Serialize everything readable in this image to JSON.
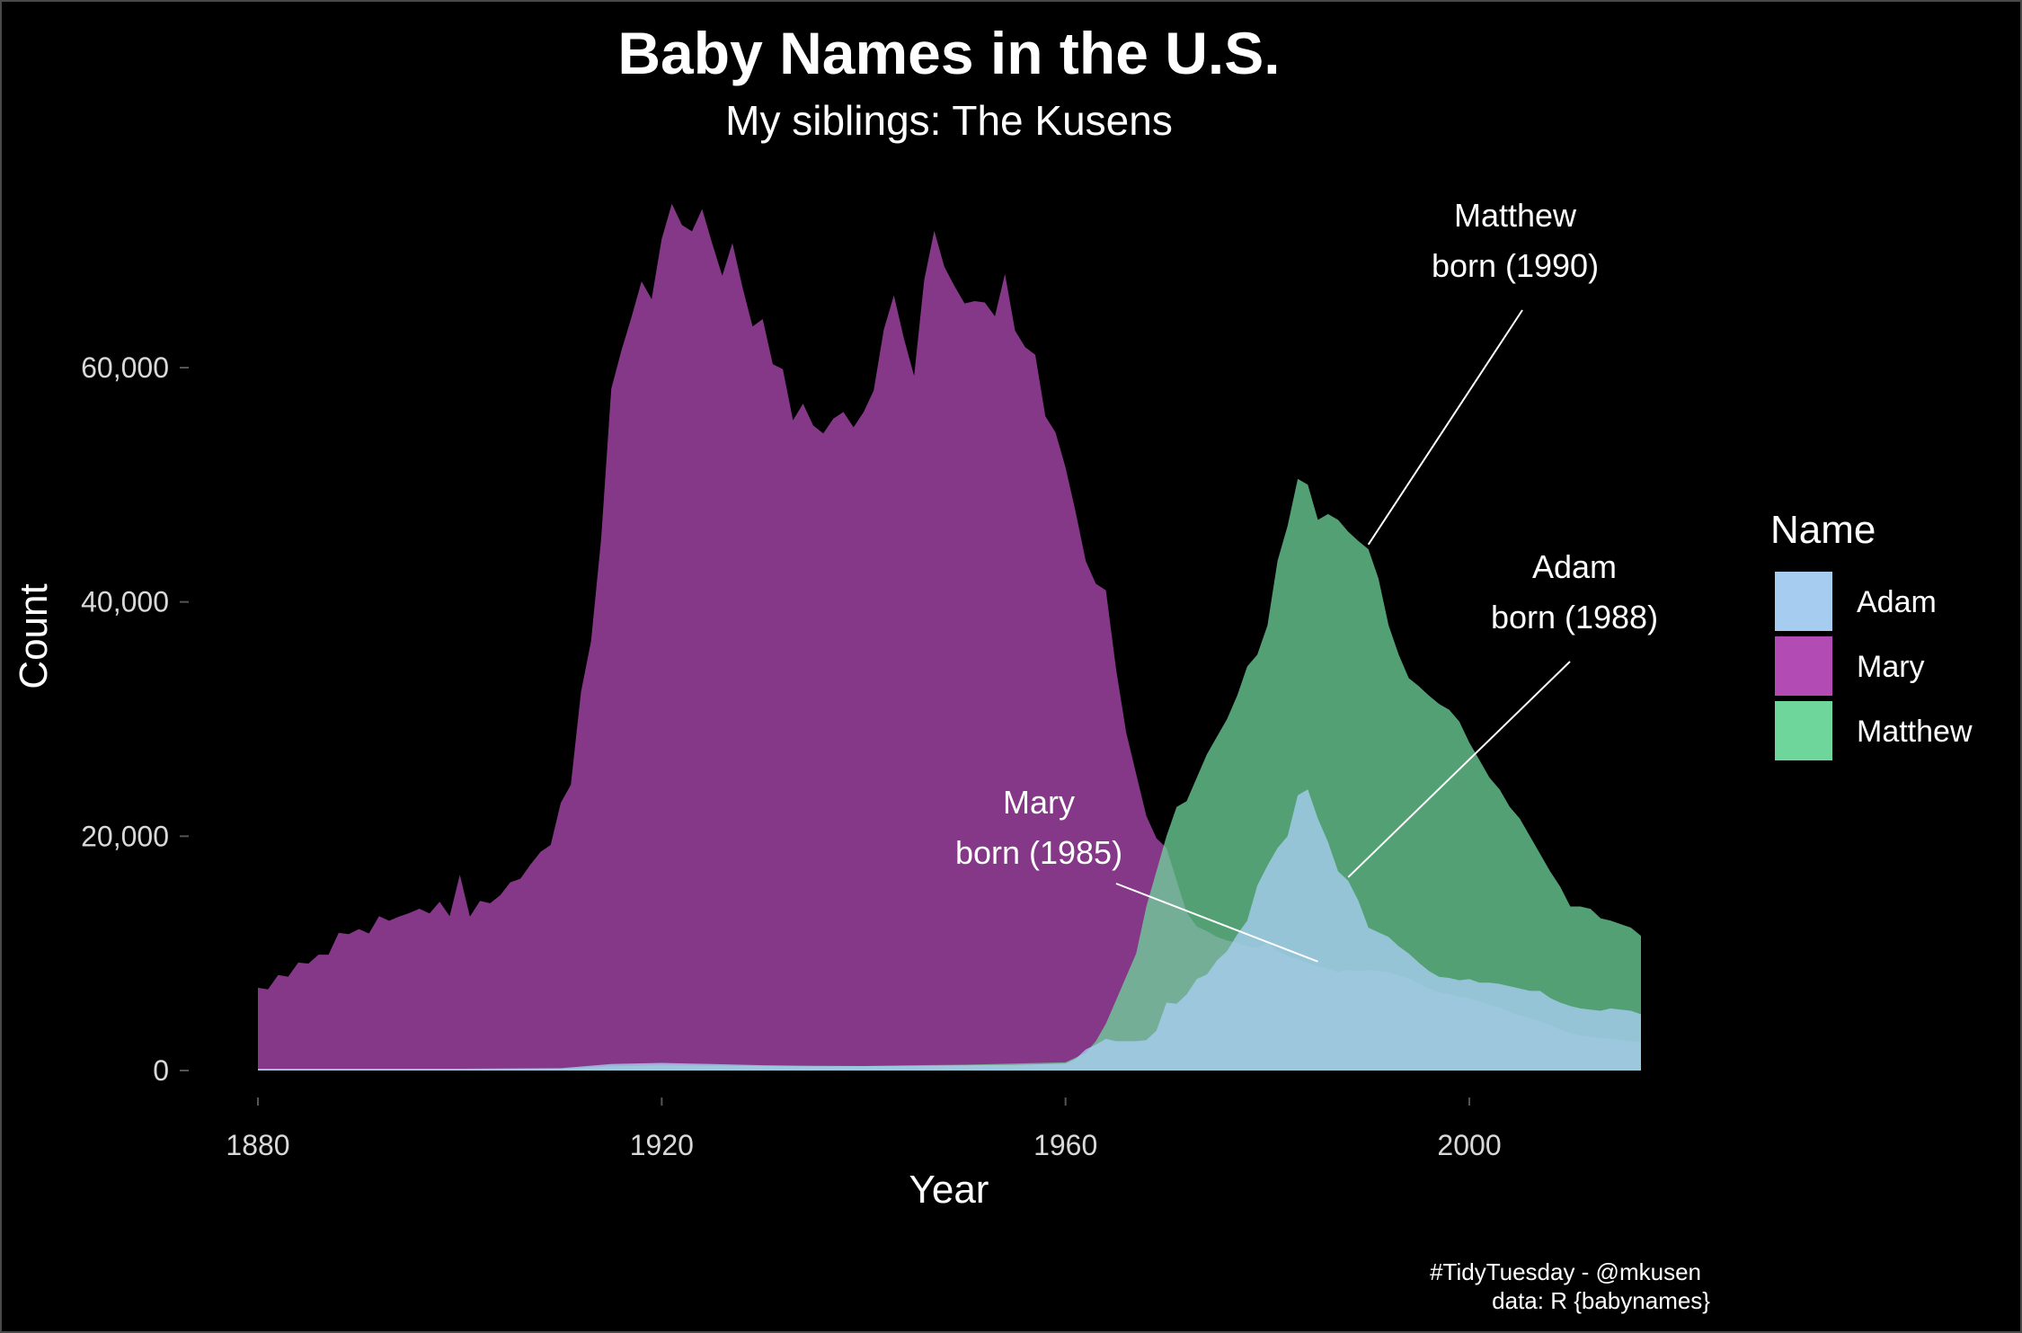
{
  "title": "Baby Names in the U.S.",
  "subtitle": "My siblings: The Kusens",
  "caption": [
    "#TidyTuesday - @mkusen",
    "data: R {babynames}"
  ],
  "chart_data": {
    "type": "area",
    "xlabel": "Year",
    "ylabel": "Count",
    "xlim": [
      1880,
      2017
    ],
    "ylim": [
      0,
      75000
    ],
    "x_ticks": [
      1880,
      1920,
      1960,
      2000
    ],
    "y_ticks": [
      0,
      20000,
      40000,
      60000
    ],
    "x_tick_labels": [
      "1880",
      "1920",
      "1960",
      "2000"
    ],
    "y_tick_labels": [
      "0",
      "20,000",
      "40,000",
      "60,000"
    ],
    "grid": false,
    "legend": {
      "title": "Name",
      "position": "right",
      "entries": [
        "Adam",
        "Mary",
        "Matthew"
      ]
    },
    "series": [
      {
        "name": "Mary",
        "color": "#B34BB5",
        "opacity": 0.75,
        "points": [
          [
            1880,
            7065
          ],
          [
            1881,
            6919
          ],
          [
            1882,
            8148
          ],
          [
            1883,
            8012
          ],
          [
            1884,
            9217
          ],
          [
            1885,
            9128
          ],
          [
            1886,
            9890
          ],
          [
            1887,
            9888
          ],
          [
            1888,
            11754
          ],
          [
            1889,
            11648
          ],
          [
            1890,
            12078
          ],
          [
            1891,
            11703
          ],
          [
            1892,
            13172
          ],
          [
            1893,
            12784
          ],
          [
            1894,
            13151
          ],
          [
            1895,
            13446
          ],
          [
            1896,
            13811
          ],
          [
            1897,
            13413
          ],
          [
            1898,
            14406
          ],
          [
            1899,
            13172
          ],
          [
            1900,
            16707
          ],
          [
            1901,
            13136
          ],
          [
            1902,
            14486
          ],
          [
            1903,
            14275
          ],
          [
            1904,
            14962
          ],
          [
            1905,
            16066
          ],
          [
            1906,
            16370
          ],
          [
            1907,
            17580
          ],
          [
            1908,
            18666
          ],
          [
            1909,
            19259
          ],
          [
            1910,
            22848
          ],
          [
            1911,
            24390
          ],
          [
            1912,
            32304
          ],
          [
            1913,
            36642
          ],
          [
            1914,
            45345
          ],
          [
            1915,
            58187
          ],
          [
            1916,
            61438
          ],
          [
            1917,
            64281
          ],
          [
            1918,
            67366
          ],
          [
            1919,
            65838
          ],
          [
            1920,
            70980
          ],
          [
            1921,
            73982
          ],
          [
            1922,
            72173
          ],
          [
            1923,
            71635
          ],
          [
            1924,
            73536
          ],
          [
            1925,
            70593
          ],
          [
            1926,
            67830
          ],
          [
            1927,
            70632
          ],
          [
            1928,
            66869
          ],
          [
            1929,
            63510
          ],
          [
            1930,
            64146
          ],
          [
            1931,
            60296
          ],
          [
            1932,
            59872
          ],
          [
            1933,
            55507
          ],
          [
            1934,
            56924
          ],
          [
            1935,
            55065
          ],
          [
            1936,
            54373
          ],
          [
            1937,
            55642
          ],
          [
            1938,
            56213
          ],
          [
            1939,
            54906
          ],
          [
            1940,
            56203
          ],
          [
            1941,
            58040
          ],
          [
            1942,
            63251
          ],
          [
            1943,
            66168
          ],
          [
            1944,
            62465
          ],
          [
            1945,
            59284
          ],
          [
            1946,
            67468
          ],
          [
            1947,
            71687
          ],
          [
            1948,
            68597
          ],
          [
            1949,
            66964
          ],
          [
            1950,
            65480
          ],
          [
            1951,
            65680
          ],
          [
            1952,
            65562
          ],
          [
            1953,
            64383
          ],
          [
            1954,
            68003
          ],
          [
            1955,
            63154
          ],
          [
            1956,
            61750
          ],
          [
            1957,
            61093
          ],
          [
            1958,
            55857
          ],
          [
            1959,
            54477
          ],
          [
            1960,
            51477
          ],
          [
            1961,
            47682
          ],
          [
            1962,
            43483
          ],
          [
            1963,
            41552
          ],
          [
            1964,
            40990
          ],
          [
            1965,
            34264
          ],
          [
            1966,
            28877
          ],
          [
            1967,
            25312
          ],
          [
            1968,
            21728
          ],
          [
            1969,
            19835
          ],
          [
            1970,
            19000
          ],
          [
            1971,
            16200
          ],
          [
            1972,
            13500
          ],
          [
            1973,
            12300
          ],
          [
            1974,
            11900
          ],
          [
            1975,
            11400
          ],
          [
            1976,
            11100
          ],
          [
            1977,
            10900
          ],
          [
            1978,
            10600
          ],
          [
            1979,
            10500
          ],
          [
            1980,
            10900
          ],
          [
            1981,
            10200
          ],
          [
            1982,
            9800
          ],
          [
            1983,
            9500
          ],
          [
            1984,
            9200
          ],
          [
            1985,
            8900
          ],
          [
            1986,
            8700
          ],
          [
            1987,
            8400
          ],
          [
            1988,
            8600
          ],
          [
            1989,
            8500
          ],
          [
            1990,
            8600
          ],
          [
            1991,
            8500
          ],
          [
            1992,
            8400
          ],
          [
            1993,
            8100
          ],
          [
            1994,
            7900
          ],
          [
            1995,
            7400
          ],
          [
            1996,
            7000
          ],
          [
            1997,
            6700
          ],
          [
            1998,
            6500
          ],
          [
            1999,
            6300
          ],
          [
            2000,
            6200
          ],
          [
            2001,
            5900
          ],
          [
            2002,
            5600
          ],
          [
            2003,
            5400
          ],
          [
            2004,
            5000
          ],
          [
            2005,
            4700
          ],
          [
            2006,
            4500
          ],
          [
            2007,
            4200
          ],
          [
            2008,
            3900
          ],
          [
            2009,
            3500
          ],
          [
            2010,
            3200
          ],
          [
            2011,
            3000
          ],
          [
            2012,
            2900
          ],
          [
            2013,
            2800
          ],
          [
            2014,
            2700
          ],
          [
            2015,
            2600
          ],
          [
            2016,
            2500
          ],
          [
            2017,
            2400
          ]
        ]
      },
      {
        "name": "Matthew",
        "color": "#6FD69B",
        "opacity": 0.75,
        "points": [
          [
            1880,
            100
          ],
          [
            1900,
            100
          ],
          [
            1910,
            150
          ],
          [
            1915,
            350
          ],
          [
            1920,
            450
          ],
          [
            1925,
            400
          ],
          [
            1930,
            380
          ],
          [
            1935,
            350
          ],
          [
            1940,
            380
          ],
          [
            1945,
            450
          ],
          [
            1950,
            500
          ],
          [
            1955,
            600
          ],
          [
            1960,
            700
          ],
          [
            1962,
            1500
          ],
          [
            1963,
            2500
          ],
          [
            1964,
            4000
          ],
          [
            1965,
            6000
          ],
          [
            1966,
            8000
          ],
          [
            1967,
            10000
          ],
          [
            1968,
            14000
          ],
          [
            1969,
            17000
          ],
          [
            1970,
            20000
          ],
          [
            1971,
            22500
          ],
          [
            1972,
            23000
          ],
          [
            1973,
            25000
          ],
          [
            1974,
            27000
          ],
          [
            1975,
            28500
          ],
          [
            1976,
            30000
          ],
          [
            1977,
            32000
          ],
          [
            1978,
            34500
          ],
          [
            1979,
            35500
          ],
          [
            1980,
            38000
          ],
          [
            1981,
            43500
          ],
          [
            1982,
            46500
          ],
          [
            1983,
            50500
          ],
          [
            1984,
            50000
          ],
          [
            1985,
            47000
          ],
          [
            1986,
            47500
          ],
          [
            1987,
            47000
          ],
          [
            1988,
            46000
          ],
          [
            1989,
            45200
          ],
          [
            1990,
            44500
          ],
          [
            1991,
            42000
          ],
          [
            1992,
            38000
          ],
          [
            1993,
            35500
          ],
          [
            1994,
            33500
          ],
          [
            1995,
            32800
          ],
          [
            1996,
            32000
          ],
          [
            1997,
            31300
          ],
          [
            1998,
            30800
          ],
          [
            1999,
            29800
          ],
          [
            2000,
            28000
          ],
          [
            2001,
            26500
          ],
          [
            2002,
            25000
          ],
          [
            2003,
            24000
          ],
          [
            2004,
            22500
          ],
          [
            2005,
            21500
          ],
          [
            2006,
            20000
          ],
          [
            2007,
            18500
          ],
          [
            2008,
            17000
          ],
          [
            2009,
            15700
          ],
          [
            2010,
            14000
          ],
          [
            2011,
            14000
          ],
          [
            2012,
            13800
          ],
          [
            2013,
            13000
          ],
          [
            2014,
            12800
          ],
          [
            2015,
            12500
          ],
          [
            2016,
            12200
          ],
          [
            2017,
            11500
          ]
        ]
      },
      {
        "name": "Adam",
        "color": "#A6CDEF",
        "opacity": 0.8,
        "points": [
          [
            1880,
            150
          ],
          [
            1900,
            150
          ],
          [
            1910,
            200
          ],
          [
            1915,
            550
          ],
          [
            1920,
            650
          ],
          [
            1925,
            550
          ],
          [
            1930,
            450
          ],
          [
            1935,
            400
          ],
          [
            1940,
            380
          ],
          [
            1945,
            400
          ],
          [
            1950,
            450
          ],
          [
            1955,
            480
          ],
          [
            1960,
            600
          ],
          [
            1961,
            1000
          ],
          [
            1962,
            1800
          ],
          [
            1963,
            2200
          ],
          [
            1964,
            2700
          ],
          [
            1965,
            2500
          ],
          [
            1966,
            2500
          ],
          [
            1967,
            2500
          ],
          [
            1968,
            2600
          ],
          [
            1969,
            3400
          ],
          [
            1970,
            5800
          ],
          [
            1971,
            5700
          ],
          [
            1972,
            6500
          ],
          [
            1973,
            7800
          ],
          [
            1974,
            8200
          ],
          [
            1975,
            9400
          ],
          [
            1976,
            10200
          ],
          [
            1977,
            11600
          ],
          [
            1978,
            12800
          ],
          [
            1979,
            15800
          ],
          [
            1980,
            17500
          ],
          [
            1981,
            19000
          ],
          [
            1982,
            20000
          ],
          [
            1983,
            23500
          ],
          [
            1984,
            24000
          ],
          [
            1985,
            21500
          ],
          [
            1986,
            19500
          ],
          [
            1987,
            17000
          ],
          [
            1988,
            16200
          ],
          [
            1989,
            14500
          ],
          [
            1990,
            12200
          ],
          [
            1991,
            11800
          ],
          [
            1992,
            11400
          ],
          [
            1993,
            10600
          ],
          [
            1994,
            10000
          ],
          [
            1995,
            9200
          ],
          [
            1996,
            8500
          ],
          [
            1997,
            8000
          ],
          [
            1998,
            7900
          ],
          [
            1999,
            7700
          ],
          [
            2000,
            7800
          ],
          [
            2001,
            7500
          ],
          [
            2002,
            7500
          ],
          [
            2003,
            7400
          ],
          [
            2004,
            7200
          ],
          [
            2005,
            7000
          ],
          [
            2006,
            6800
          ],
          [
            2007,
            6800
          ],
          [
            2008,
            6200
          ],
          [
            2009,
            5800
          ],
          [
            2010,
            5500
          ],
          [
            2011,
            5300
          ],
          [
            2012,
            5200
          ],
          [
            2013,
            5100
          ],
          [
            2014,
            5300
          ],
          [
            2015,
            5200
          ],
          [
            2016,
            5100
          ],
          [
            2017,
            4800
          ]
        ]
      }
    ],
    "annotations": [
      {
        "lines": [
          "Mary",
          "born (1985)"
        ],
        "target": [
          1985,
          9300
        ]
      },
      {
        "lines": [
          "Adam",
          "born (1988)"
        ],
        "target": [
          1988,
          16500
        ]
      },
      {
        "lines": [
          "Matthew",
          "born (1990)"
        ],
        "target": [
          1990,
          44900
        ]
      }
    ]
  }
}
